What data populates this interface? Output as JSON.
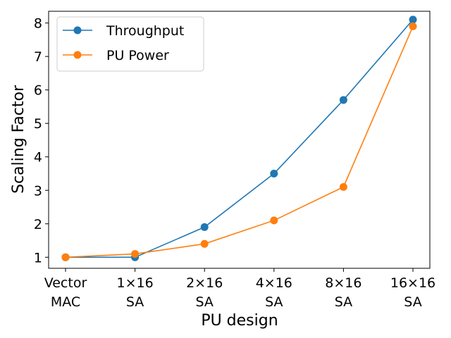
{
  "chart_data": {
    "type": "line",
    "title": "",
    "xlabel": "PU design",
    "ylabel": "Scaling Factor",
    "categories": [
      [
        "Vector",
        "MAC"
      ],
      [
        "1×16",
        "SA"
      ],
      [
        "2×16",
        "SA"
      ],
      [
        "4×16",
        "SA"
      ],
      [
        "8×16",
        "SA"
      ],
      [
        "16×16",
        "SA"
      ]
    ],
    "ylim": [
      0.67,
      8.35
    ],
    "yticks": [
      1,
      2,
      3,
      4,
      5,
      6,
      7,
      8
    ],
    "grid": false,
    "legend_position": "top-left",
    "series": [
      {
        "name": "Throughput",
        "color": "#1f77b4",
        "marker": "circle",
        "values": [
          1.0,
          1.0,
          1.9,
          3.5,
          5.7,
          8.1
        ]
      },
      {
        "name": "PU Power",
        "color": "#ff7f0e",
        "marker": "circle",
        "values": [
          1.0,
          1.1,
          1.4,
          2.1,
          3.1,
          7.9
        ]
      }
    ]
  }
}
